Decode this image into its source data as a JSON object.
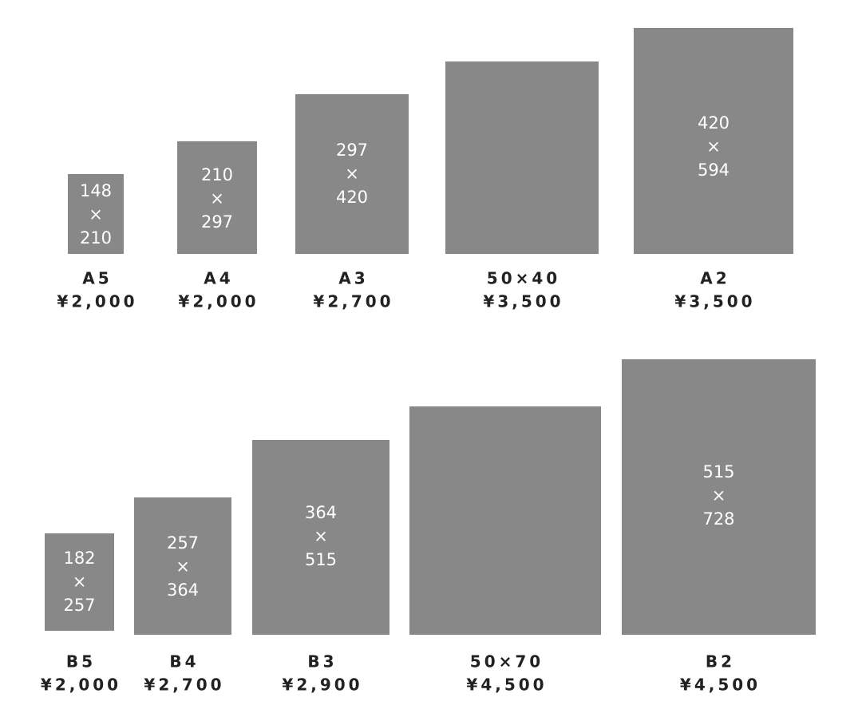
{
  "rows": [
    {
      "items": [
        {
          "name": "A5",
          "price": "¥2,000",
          "size": {
            "width": "148",
            "by": "×",
            "height": "210"
          }
        },
        {
          "name": "A4",
          "price": "¥2,000",
          "size": {
            "width": "210",
            "by": "×",
            "height": "297"
          }
        },
        {
          "name": "A3",
          "price": "¥2,700",
          "size": {
            "width": "297",
            "by": "×",
            "height": "420"
          }
        },
        {
          "name": "50×40",
          "price": "¥3,500"
        },
        {
          "name": "A2",
          "price": "¥3,500",
          "size": {
            "width": "420",
            "by": "×",
            "height": "594"
          }
        }
      ]
    },
    {
      "items": [
        {
          "name": "B5",
          "price": "¥2,000",
          "size": {
            "width": "182",
            "by": "×",
            "height": "257"
          }
        },
        {
          "name": "B4",
          "price": "¥2,700",
          "size": {
            "width": "257",
            "by": "×",
            "height": "364"
          }
        },
        {
          "name": "B3",
          "price": "¥2,900",
          "size": {
            "width": "364",
            "by": "×",
            "height": "515"
          }
        },
        {
          "name": "50×70",
          "price": "¥4,500"
        },
        {
          "name": "B2",
          "price": "¥4,500",
          "size": {
            "width": "515",
            "by": "×",
            "height": "728"
          }
        }
      ]
    }
  ]
}
